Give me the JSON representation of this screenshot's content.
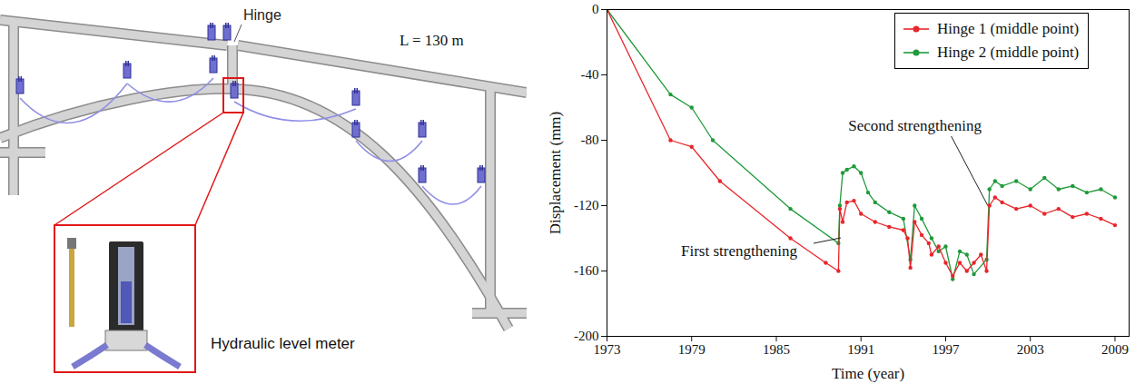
{
  "chart_data": {
    "type": "line",
    "xlabel": "Time (year)",
    "ylabel": "Displacement (mm)",
    "xlim": [
      1973,
      2010
    ],
    "xticks": [
      1973,
      1979,
      1985,
      1991,
      1997,
      2003,
      2009
    ],
    "ylim": [
      -200,
      0
    ],
    "yticks": [
      -200,
      -160,
      -120,
      -80,
      -40,
      0
    ],
    "grid": false,
    "legend": "upper right",
    "series": [
      {
        "name": "Hinge 1 (middle point)",
        "color": "#e8262b",
        "marker": "circle",
        "line_style": "solid",
        "x": [
          1973,
          1977.5,
          1979,
          1981,
          1986,
          1988.5,
          1989.4,
          1989.5,
          1989.7,
          1990,
          1990.5,
          1991,
          1992,
          1993,
          1994,
          1994.3,
          1994.5,
          1994.8,
          1995.3,
          1995.8,
          1996,
          1996.5,
          1997,
          1997.5,
          1998,
          1998.5,
          1999,
          1999.5,
          1999.9,
          2000.1,
          2000.5,
          2001,
          2002,
          2003,
          2004,
          2005,
          2006,
          2007,
          2008,
          2009
        ],
        "values": [
          0,
          -80,
          -84,
          -105,
          -140,
          -155,
          -160,
          -122,
          -130,
          -118,
          -117,
          -125,
          -130,
          -133,
          -135,
          -140,
          -158,
          -130,
          -138,
          -143,
          -150,
          -145,
          -155,
          -163,
          -155,
          -160,
          -155,
          -150,
          -160,
          -120,
          -115,
          -118,
          -122,
          -120,
          -125,
          -122,
          -127,
          -125,
          -128,
          -132
        ]
      },
      {
        "name": "Hinge 2 (middle point)",
        "color": "#1f9a3a",
        "marker": "circle",
        "line_style": "solid",
        "x": [
          1973,
          1977.5,
          1979,
          1980.5,
          1986,
          1989.4,
          1989.5,
          1989.7,
          1990,
          1990.5,
          1991,
          1991.5,
          1992,
          1993,
          1994,
          1994.5,
          1994.8,
          1995.3,
          1996,
          1996.5,
          1997,
          1997.5,
          1998,
          1998.5,
          1999,
          1999.9,
          2000.1,
          2000.5,
          2001,
          2002,
          2003,
          2004,
          2005,
          2006,
          2007,
          2008,
          2009
        ],
        "values": [
          0,
          -52,
          -60,
          -80,
          -122,
          -143,
          -120,
          -100,
          -98,
          -96,
          -100,
          -112,
          -118,
          -124,
          -128,
          -153,
          -120,
          -128,
          -140,
          -148,
          -145,
          -165,
          -148,
          -150,
          -162,
          -153,
          -110,
          -105,
          -108,
          -105,
          -110,
          -103,
          -110,
          -108,
          -112,
          -110,
          -115
        ]
      }
    ],
    "annotations": [
      {
        "text": "First strengthening",
        "x": 1989.6,
        "y": -140
      },
      {
        "text": "Second strengthening",
        "x": 2000,
        "y": -120
      }
    ]
  },
  "diagram": {
    "hinge_label": "Hinge",
    "span_label": "L = 130 m",
    "instrument_label": "Hydraulic level meter"
  }
}
